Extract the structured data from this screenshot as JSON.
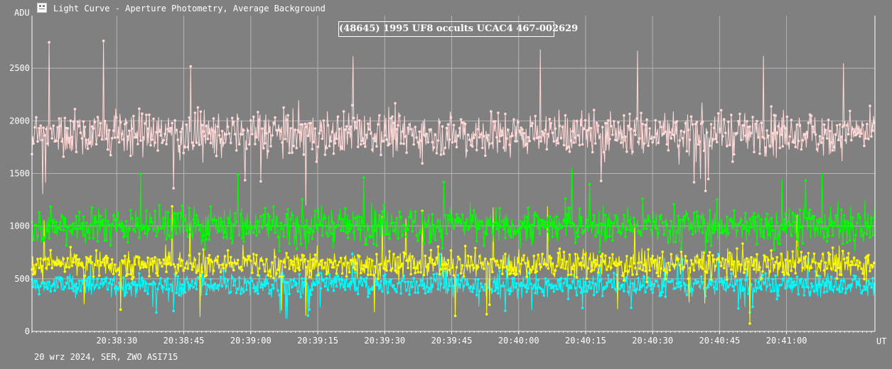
{
  "window": {
    "title": "Light Curve - Aperture Photometry, Average Background",
    "icon": "light-curve-app-icon"
  },
  "footer": "20 wrz 2024, SER, ZWO ASI715",
  "chart_data": {
    "type": "line",
    "title": "(48645) 1995 UF8 occults UCAC4 467-002629",
    "ylabel": "ADU",
    "xlabel": "UT",
    "ylim": [
      0,
      3000
    ],
    "yticks": [
      0,
      500,
      1000,
      1500,
      2000,
      2500
    ],
    "x_tick_labels": [
      "20:38:30",
      "20:38:45",
      "20:39:00",
      "20:39:15",
      "20:39:30",
      "20:39:45",
      "20:40:00",
      "20:40:15",
      "20:40:30",
      "20:40:45",
      "20:41:00"
    ],
    "x_tick_seconds": [
      30,
      45,
      60,
      75,
      90,
      105,
      120,
      135,
      150,
      165,
      180
    ],
    "xlim_seconds": [
      11.0,
      199.8
    ],
    "xlim_note_unit": "seconds after 20:38:00 UT",
    "grid": true,
    "series": [
      {
        "color": "#ffd8d8",
        "mean": 1880,
        "spread": 180,
        "min": 1190,
        "max": 2780,
        "points": 1180
      },
      {
        "color": "#00ff00",
        "mean": 1010,
        "spread": 150,
        "min": 720,
        "max": 1560,
        "points": 1180
      },
      {
        "color": "#ffff00",
        "mean": 640,
        "spread": 110,
        "min": 70,
        "max": 1200,
        "points": 1180
      },
      {
        "color": "#00ffff",
        "mean": 440,
        "spread": 90,
        "min": 110,
        "max": 760,
        "points": 1180
      }
    ],
    "grid_color": "#b4b4b4"
  }
}
